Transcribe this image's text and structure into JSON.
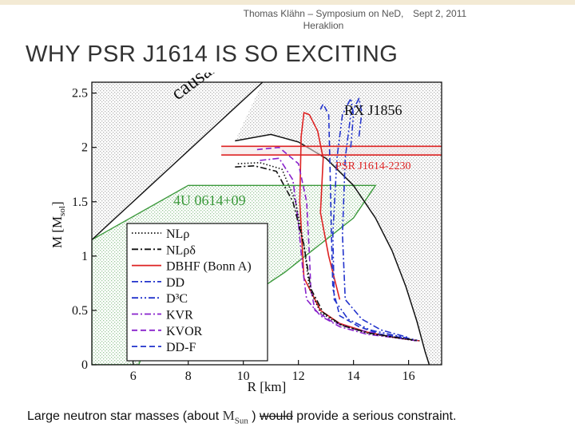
{
  "slide": {
    "header": [
      "Thomas Klähn – Symposium on NeD,",
      "Heraklion"
    ],
    "date": "Sept 2, 2011",
    "title": "WHY PSR J1614 IS SO EXCITING",
    "caption": {
      "before": "Large neutron star masses (about ",
      "msun_m": "M",
      "msun_sub": "Sun",
      "mid": " ) ",
      "struck": "would",
      "after": " provide a serious constraint."
    }
  },
  "chart_data": {
    "type": "line",
    "xlabel": "R [km]",
    "ylabel": "M  [M",
    "ylabel_sub": "sol",
    "ylabel_end": "]",
    "xlim": [
      4.5,
      17.2
    ],
    "ylim": [
      0,
      2.6
    ],
    "xticks": [
      6,
      8,
      10,
      12,
      14,
      16
    ],
    "yticks": [
      0,
      0.5,
      1,
      1.5,
      2,
      2.5
    ],
    "ytick_labels": [
      "0",
      "0.5",
      "1",
      "1.5",
      "2",
      "2.5"
    ],
    "annotations": {
      "causality": "causality limit",
      "rxj": "RX J1856",
      "psr": "PSR J1614-2230",
      "ulow": "4U 0614+09"
    },
    "colors": {
      "red": "#dd2222",
      "blue": "#2233cc",
      "purple": "#8822cc",
      "green": "#3c9a3c",
      "black": "#111111"
    },
    "legend": {
      "position": "lower-left",
      "entries": [
        {
          "label": "NLρ",
          "style": "dotted",
          "color": "#111111"
        },
        {
          "label": "NLρδ",
          "style": "dashdot",
          "color": "#111111"
        },
        {
          "label": "DBHF (Bonn A)",
          "style": "solid",
          "color": "#dd2222"
        },
        {
          "label": "DD",
          "style": "dashdot",
          "color": "#2233cc"
        },
        {
          "label": "D³C",
          "style": "dashdotdot",
          "color": "#2233cc"
        },
        {
          "label": "KVR",
          "style": "dashdot",
          "color": "#8822cc"
        },
        {
          "label": "KVOR",
          "style": "dashed",
          "color": "#8822cc"
        },
        {
          "label": "DD-F",
          "style": "dashed",
          "color": "#2233cc"
        }
      ]
    },
    "series": [
      {
        "color": "#dd2222",
        "style": "solid",
        "x": [
          13.5,
          13.1,
          12.8,
          12.9,
          12.7,
          12.4,
          12.2,
          12.1,
          12.05,
          12.2,
          12.8,
          13.5,
          14.5,
          15.5,
          16.4
        ],
        "y": [
          0.6,
          1.0,
          1.4,
          1.9,
          2.15,
          2.3,
          2.32,
          2.1,
          1.5,
          0.8,
          0.5,
          0.38,
          0.3,
          0.25,
          0.22
        ]
      },
      {
        "color": "#8822cc",
        "style": "dashed",
        "x": [
          10.5,
          11.3,
          12.0,
          12.3,
          12.4,
          12.45,
          12.6,
          13.2,
          14.0,
          15.0,
          16.0
        ],
        "y": [
          1.98,
          2.0,
          1.85,
          1.5,
          1.0,
          0.7,
          0.5,
          0.4,
          0.33,
          0.28,
          0.24
        ]
      },
      {
        "color": "#8822cc",
        "style": "dashdot",
        "x": [
          10.6,
          11.3,
          11.8,
          12.0,
          12.15,
          12.3,
          12.8,
          13.5,
          14.5,
          15.5,
          16.3
        ],
        "y": [
          1.88,
          1.9,
          1.7,
          1.3,
          0.9,
          0.6,
          0.45,
          0.35,
          0.28,
          0.25,
          0.22
        ]
      },
      {
        "color": "#2233cc",
        "style": "dashed",
        "x": [
          12.8,
          12.9,
          13.1,
          13.15,
          13.2,
          13.25,
          13.5,
          14.2,
          15.0,
          16.0
        ],
        "y": [
          2.35,
          2.4,
          2.3,
          1.8,
          1.2,
          0.7,
          0.45,
          0.35,
          0.28,
          0.24
        ]
      },
      {
        "color": "#2233cc",
        "style": "dashdotdot",
        "x": [
          13.9,
          14.0,
          13.9,
          13.6,
          13.4,
          13.25,
          13.3,
          13.8,
          14.6,
          15.5,
          16.4
        ],
        "y": [
          2.0,
          2.3,
          2.45,
          2.3,
          1.9,
          1.2,
          0.6,
          0.42,
          0.32,
          0.27,
          0.22
        ]
      },
      {
        "color": "#2233cc",
        "style": "dashdot",
        "x": [
          14.2,
          14.3,
          14.2,
          13.9,
          13.7,
          13.6,
          13.7,
          14.3,
          15.0,
          16.0
        ],
        "y": [
          2.1,
          2.32,
          2.45,
          2.3,
          1.9,
          1.2,
          0.6,
          0.42,
          0.32,
          0.25
        ]
      },
      {
        "color": "#111111",
        "style": "dotted",
        "x": [
          9.8,
          10.6,
          11.4,
          11.9,
          12.2,
          12.4,
          12.8,
          13.5,
          14.5,
          15.5,
          16.3
        ],
        "y": [
          1.85,
          1.86,
          1.8,
          1.5,
          1.1,
          0.7,
          0.48,
          0.37,
          0.29,
          0.25,
          0.22
        ]
      },
      {
        "color": "#111111",
        "style": "dashdot",
        "x": [
          9.7,
          10.4,
          11.2,
          11.8,
          12.2,
          12.45,
          12.9,
          13.6,
          14.6,
          15.6,
          16.4
        ],
        "y": [
          1.82,
          1.83,
          1.78,
          1.5,
          1.1,
          0.7,
          0.48,
          0.36,
          0.29,
          0.25,
          0.22
        ]
      }
    ]
  }
}
